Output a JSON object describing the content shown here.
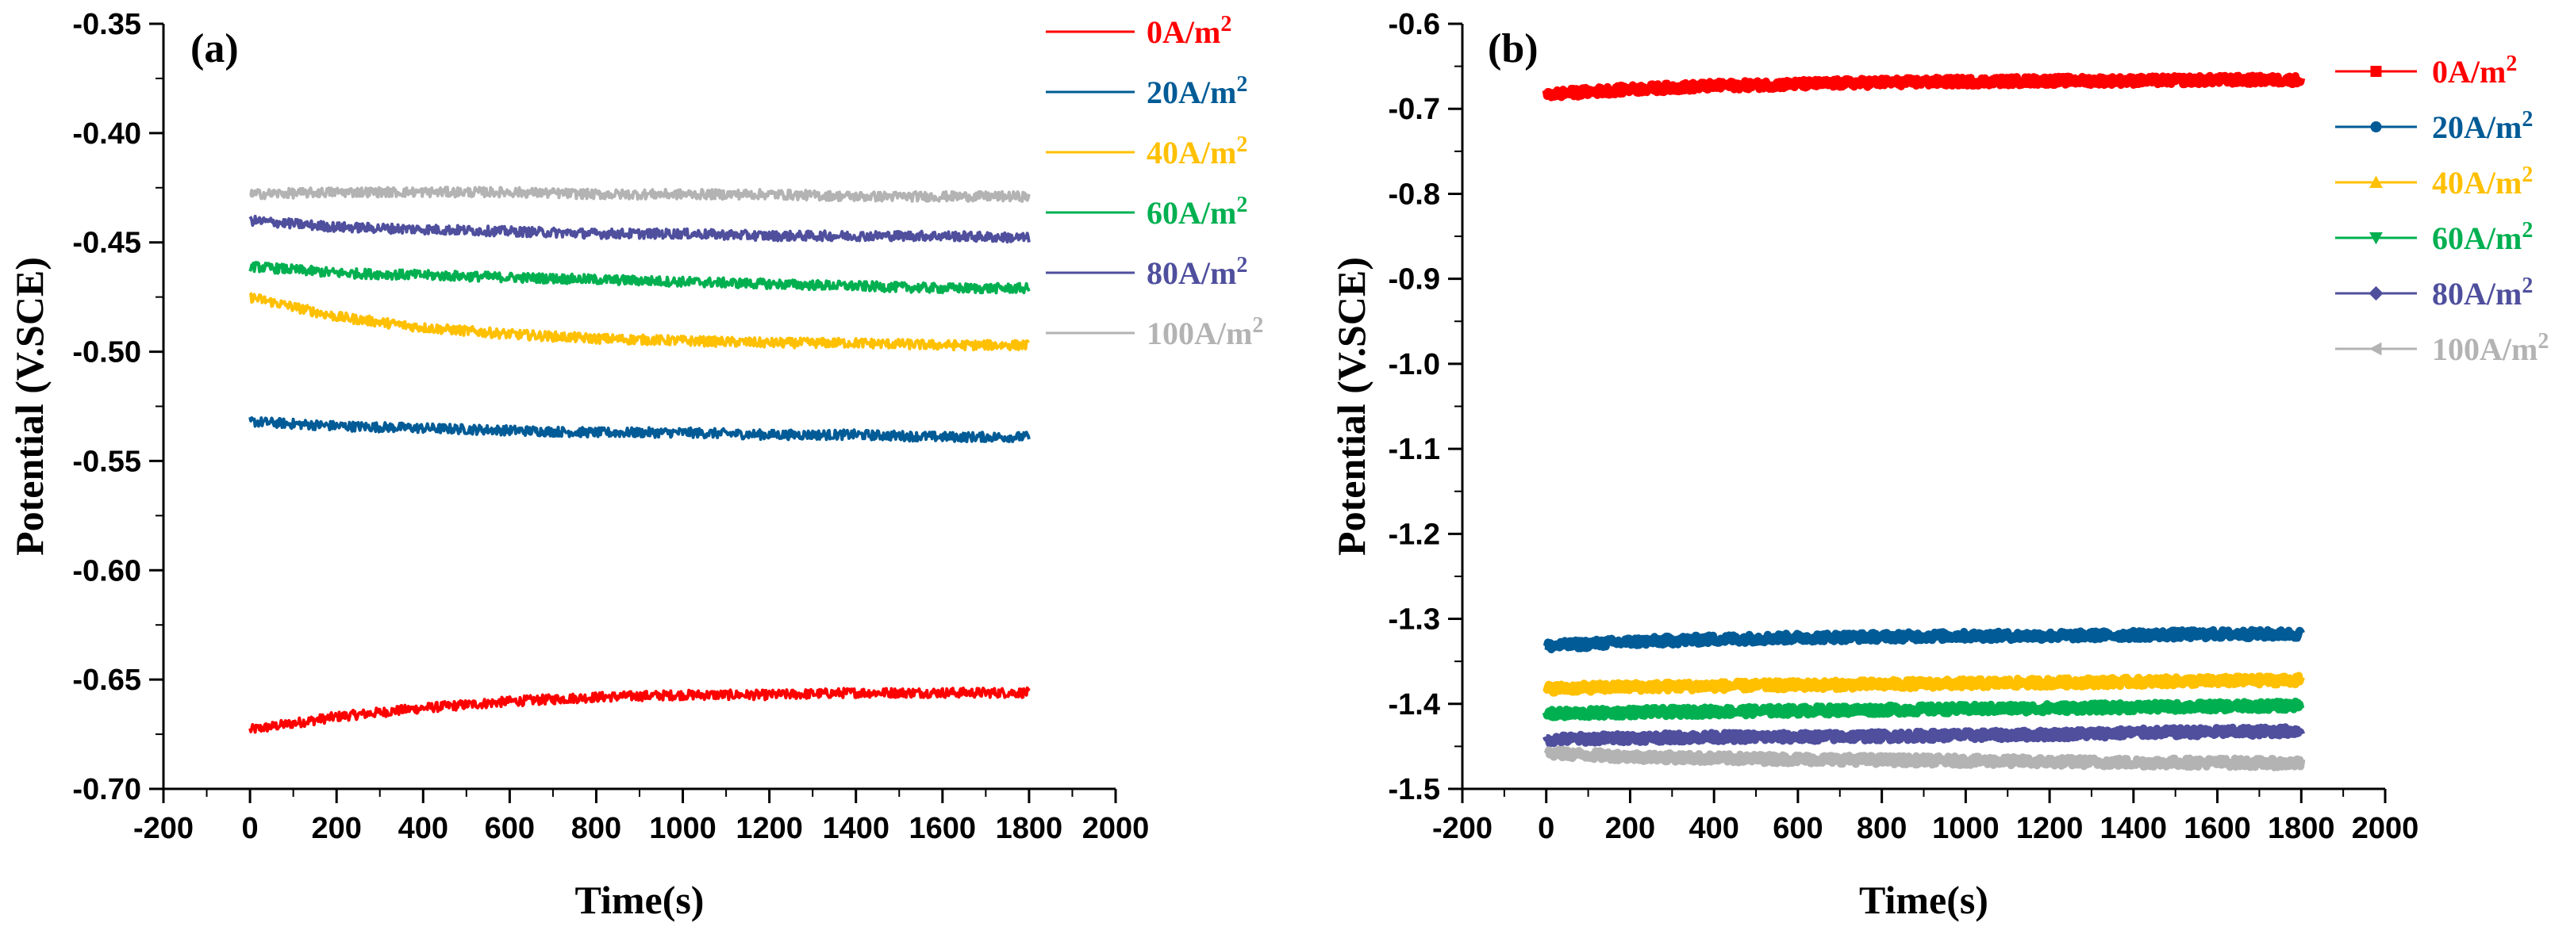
{
  "chart_data": [
    {
      "type": "line",
      "panel_label": "(a)",
      "xlabel": "Time(s)",
      "ylabel": "Potential (V.SCE)",
      "xlim": [
        -200,
        2000
      ],
      "ylim": [
        -0.7,
        -0.35
      ],
      "xticks": [
        -200,
        0,
        200,
        400,
        600,
        800,
        1000,
        1200,
        1400,
        1600,
        1800,
        2000
      ],
      "yticks": [
        -0.7,
        -0.65,
        -0.6,
        -0.55,
        -0.5,
        -0.45,
        -0.4,
        -0.35
      ],
      "ytick_labels": [
        "-0.70",
        "-0.65",
        "-0.60",
        "-0.55",
        "-0.50",
        "-0.45",
        "-0.40",
        "-0.35"
      ],
      "legend_position": "top-right",
      "series": [
        {
          "name": "0A/m",
          "sup": "2",
          "color": "#ff0000",
          "marker": "none",
          "x": [
            0,
            200,
            400,
            600,
            800,
            1000,
            1200,
            1400,
            1600,
            1800
          ],
          "y": [
            -0.673,
            -0.667,
            -0.663,
            -0.66,
            -0.658,
            -0.657,
            -0.657,
            -0.656,
            -0.656,
            -0.656
          ]
        },
        {
          "name": "20A/m",
          "sup": "2",
          "color": "#005b96",
          "marker": "none",
          "x": [
            0,
            200,
            400,
            600,
            800,
            1000,
            1200,
            1400,
            1600,
            1800
          ],
          "y": [
            -0.532,
            -0.534,
            -0.535,
            -0.536,
            -0.537,
            -0.537,
            -0.538,
            -0.538,
            -0.539,
            -0.539
          ]
        },
        {
          "name": "40A/m",
          "sup": "2",
          "color": "#ffc000",
          "marker": "none",
          "x": [
            0,
            200,
            400,
            600,
            800,
            1000,
            1200,
            1400,
            1600,
            1800
          ],
          "y": [
            -0.475,
            -0.484,
            -0.489,
            -0.492,
            -0.494,
            -0.495,
            -0.496,
            -0.496,
            -0.497,
            -0.497
          ]
        },
        {
          "name": "60A/m",
          "sup": "2",
          "color": "#00b050",
          "marker": "none",
          "x": [
            0,
            200,
            400,
            600,
            800,
            1000,
            1200,
            1400,
            1600,
            1800
          ],
          "y": [
            -0.461,
            -0.464,
            -0.465,
            -0.466,
            -0.467,
            -0.468,
            -0.469,
            -0.47,
            -0.471,
            -0.471
          ]
        },
        {
          "name": "80A/m",
          "sup": "2",
          "color": "#4f4f9e",
          "marker": "none",
          "x": [
            0,
            200,
            400,
            600,
            800,
            1000,
            1200,
            1400,
            1600,
            1800
          ],
          "y": [
            -0.44,
            -0.443,
            -0.444,
            -0.445,
            -0.446,
            -0.446,
            -0.447,
            -0.447,
            -0.447,
            -0.448
          ]
        },
        {
          "name": "100A/m",
          "sup": "2",
          "color": "#b3b3b3",
          "marker": "none",
          "x": [
            0,
            200,
            400,
            600,
            800,
            1000,
            1200,
            1400,
            1600,
            1800
          ],
          "y": [
            -0.428,
            -0.427,
            -0.427,
            -0.427,
            -0.428,
            -0.428,
            -0.428,
            -0.429,
            -0.429,
            -0.429
          ]
        }
      ]
    },
    {
      "type": "line",
      "panel_label": "(b)",
      "xlabel": "Time(s)",
      "ylabel": "Potential (V.SCE)",
      "xlim": [
        -200,
        2000
      ],
      "ylim": [
        -1.5,
        -0.6
      ],
      "xticks": [
        -200,
        0,
        200,
        400,
        600,
        800,
        1000,
        1200,
        1400,
        1600,
        1800,
        2000
      ],
      "yticks": [
        -1.5,
        -1.4,
        -1.3,
        -1.2,
        -1.1,
        -1.0,
        -0.9,
        -0.8,
        -0.7,
        -0.6
      ],
      "ytick_labels": [
        "-1.5",
        "-1.4",
        "-1.3",
        "-1.2",
        "-1.1",
        "-1.0",
        "-0.9",
        "-0.8",
        "-0.7",
        "-0.6"
      ],
      "legend_position": "top-right",
      "series": [
        {
          "name": "0A/m",
          "sup": "2",
          "color": "#ff0000",
          "marker": "square",
          "x": [
            0,
            200,
            400,
            600,
            800,
            1000,
            1200,
            1400,
            1600,
            1800
          ],
          "y": [
            -0.683,
            -0.677,
            -0.673,
            -0.671,
            -0.669,
            -0.668,
            -0.667,
            -0.667,
            -0.666,
            -0.666
          ]
        },
        {
          "name": "20A/m",
          "sup": "2",
          "color": "#005b96",
          "marker": "circle",
          "x": [
            0,
            200,
            400,
            600,
            800,
            1000,
            1200,
            1400,
            1600,
            1800
          ],
          "y": [
            -1.332,
            -1.327,
            -1.324,
            -1.322,
            -1.321,
            -1.32,
            -1.32,
            -1.319,
            -1.318,
            -1.318
          ]
        },
        {
          "name": "40A/m",
          "sup": "2",
          "color": "#ffc000",
          "marker": "triangle-up",
          "x": [
            0,
            200,
            400,
            600,
            800,
            1000,
            1200,
            1400,
            1600,
            1800
          ],
          "y": [
            -1.382,
            -1.38,
            -1.379,
            -1.378,
            -1.377,
            -1.376,
            -1.375,
            -1.374,
            -1.373,
            -1.372
          ]
        },
        {
          "name": "60A/m",
          "sup": "2",
          "color": "#00b050",
          "marker": "triangle-down",
          "x": [
            0,
            200,
            400,
            600,
            800,
            1000,
            1200,
            1400,
            1600,
            1800
          ],
          "y": [
            -1.412,
            -1.41,
            -1.409,
            -1.408,
            -1.407,
            -1.406,
            -1.405,
            -1.404,
            -1.403,
            -1.402
          ]
        },
        {
          "name": "80A/m",
          "sup": "2",
          "color": "#4f4f9e",
          "marker": "diamond",
          "x": [
            0,
            200,
            400,
            600,
            800,
            1000,
            1200,
            1400,
            1600,
            1800
          ],
          "y": [
            -1.442,
            -1.44,
            -1.439,
            -1.439,
            -1.438,
            -1.437,
            -1.436,
            -1.434,
            -1.433,
            -1.432
          ]
        },
        {
          "name": "100A/m",
          "sup": "2",
          "color": "#b3b3b3",
          "marker": "triangle-left",
          "x": [
            0,
            200,
            400,
            600,
            800,
            1000,
            1200,
            1400,
            1600,
            1800
          ],
          "y": [
            -1.458,
            -1.462,
            -1.464,
            -1.465,
            -1.466,
            -1.467,
            -1.468,
            -1.469,
            -1.469,
            -1.47
          ]
        }
      ]
    }
  ]
}
